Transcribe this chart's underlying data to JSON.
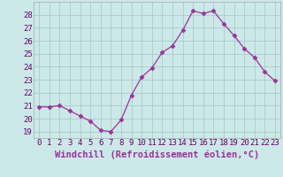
{
  "x": [
    0,
    1,
    2,
    3,
    4,
    5,
    6,
    7,
    8,
    9,
    10,
    11,
    12,
    13,
    14,
    15,
    16,
    17,
    18,
    19,
    20,
    21,
    22,
    23
  ],
  "y": [
    20.9,
    20.9,
    21.0,
    20.6,
    20.2,
    19.8,
    19.1,
    19.0,
    19.9,
    21.8,
    23.2,
    23.9,
    25.1,
    25.6,
    26.8,
    28.3,
    28.1,
    28.3,
    27.3,
    26.4,
    25.4,
    24.7,
    23.6,
    22.9
  ],
  "line_color": "#993399",
  "marker": "D",
  "marker_size": 2.5,
  "bg_color": "#cce8e8",
  "grid_color": "#aacccc",
  "xlabel": "Windchill (Refroidissement éolien,°C)",
  "xlabel_fontsize": 7.5,
  "ylabel_ticks": [
    19,
    20,
    21,
    22,
    23,
    24,
    25,
    26,
    27,
    28
  ],
  "ylim": [
    18.5,
    29.0
  ],
  "xlim": [
    -0.5,
    23.5
  ],
  "tick_fontsize": 6.5
}
